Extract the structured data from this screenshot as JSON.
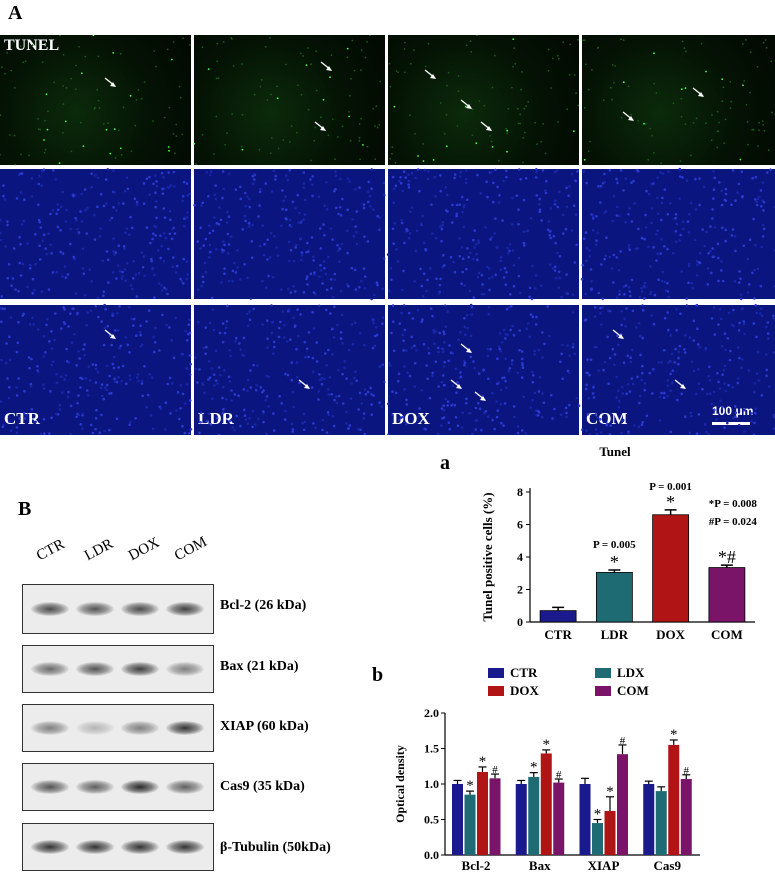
{
  "panel_a_label": "A",
  "panel_b_label": "B",
  "sub_a_label": "a",
  "sub_b_label": "b",
  "micrograph": {
    "row1_title": "TUNEL",
    "group_labels": [
      "CTR",
      "LDR",
      "DOX",
      "COM"
    ],
    "scale_bar": "100 μm"
  },
  "western_blot": {
    "lanes": [
      "CTR",
      "LDR",
      "DOX",
      "COM"
    ],
    "bands": [
      "Bcl-2 (26 kDa)",
      "Bax (21 kDa)",
      "XIAP (60 kDa)",
      "Cas9 (35 kDa)",
      "β-Tubulin (50kDa)"
    ]
  },
  "chart_data": [
    {
      "type": "bar",
      "title": "Tunel",
      "ylabel": "Tunel positive cells  (%)",
      "categories": [
        "CTR",
        "LDR",
        "DOX",
        "COM"
      ],
      "values": [
        0.7,
        3.05,
        6.6,
        3.35
      ],
      "errors": [
        0.2,
        0.15,
        0.3,
        0.15
      ],
      "ylim": [
        0,
        8
      ],
      "yticks": [
        "0",
        "2",
        "4",
        "6",
        "8"
      ],
      "colors": [
        "#1a1a8c",
        "#1f6b73",
        "#b01414",
        "#7a1468"
      ],
      "sig_marks": [
        "",
        "*",
        "*",
        "*#"
      ],
      "annotations": [
        "",
        "P = 0.005",
        "P = 0.001",
        "*P = 0.008",
        "#P = 0.024"
      ]
    },
    {
      "type": "bar",
      "ylabel": "Optical density",
      "categories": [
        "Bcl-2",
        "Bax",
        "XIAP",
        "Cas9"
      ],
      "ylim": [
        0,
        2.0
      ],
      "yticks": [
        "0.0",
        "0.5",
        "1.0",
        "1.5",
        "2.0"
      ],
      "series": [
        {
          "name": "CTR",
          "color": "#1a1a8c",
          "values": [
            1.0,
            1.0,
            1.0,
            1.0
          ],
          "errors": [
            0.05,
            0.05,
            0.08,
            0.04
          ],
          "marks": [
            "",
            "",
            "",
            ""
          ]
        },
        {
          "name": "LDX",
          "color": "#1f6b73",
          "values": [
            0.85,
            1.1,
            0.45,
            0.9
          ],
          "errors": [
            0.05,
            0.06,
            0.05,
            0.06
          ],
          "marks": [
            "*",
            "*",
            "*",
            ""
          ]
        },
        {
          "name": "DOX",
          "color": "#b01414",
          "values": [
            1.17,
            1.43,
            0.62,
            1.55
          ],
          "errors": [
            0.07,
            0.05,
            0.2,
            0.07
          ],
          "marks": [
            "*",
            "*",
            "*",
            "*"
          ]
        },
        {
          "name": "COM",
          "color": "#7a1468",
          "values": [
            1.08,
            1.02,
            1.42,
            1.07
          ],
          "errors": [
            0.06,
            0.05,
            0.13,
            0.06
          ],
          "marks": [
            "#",
            "#",
            "#",
            "#"
          ]
        }
      ],
      "legend": "top-center"
    }
  ]
}
